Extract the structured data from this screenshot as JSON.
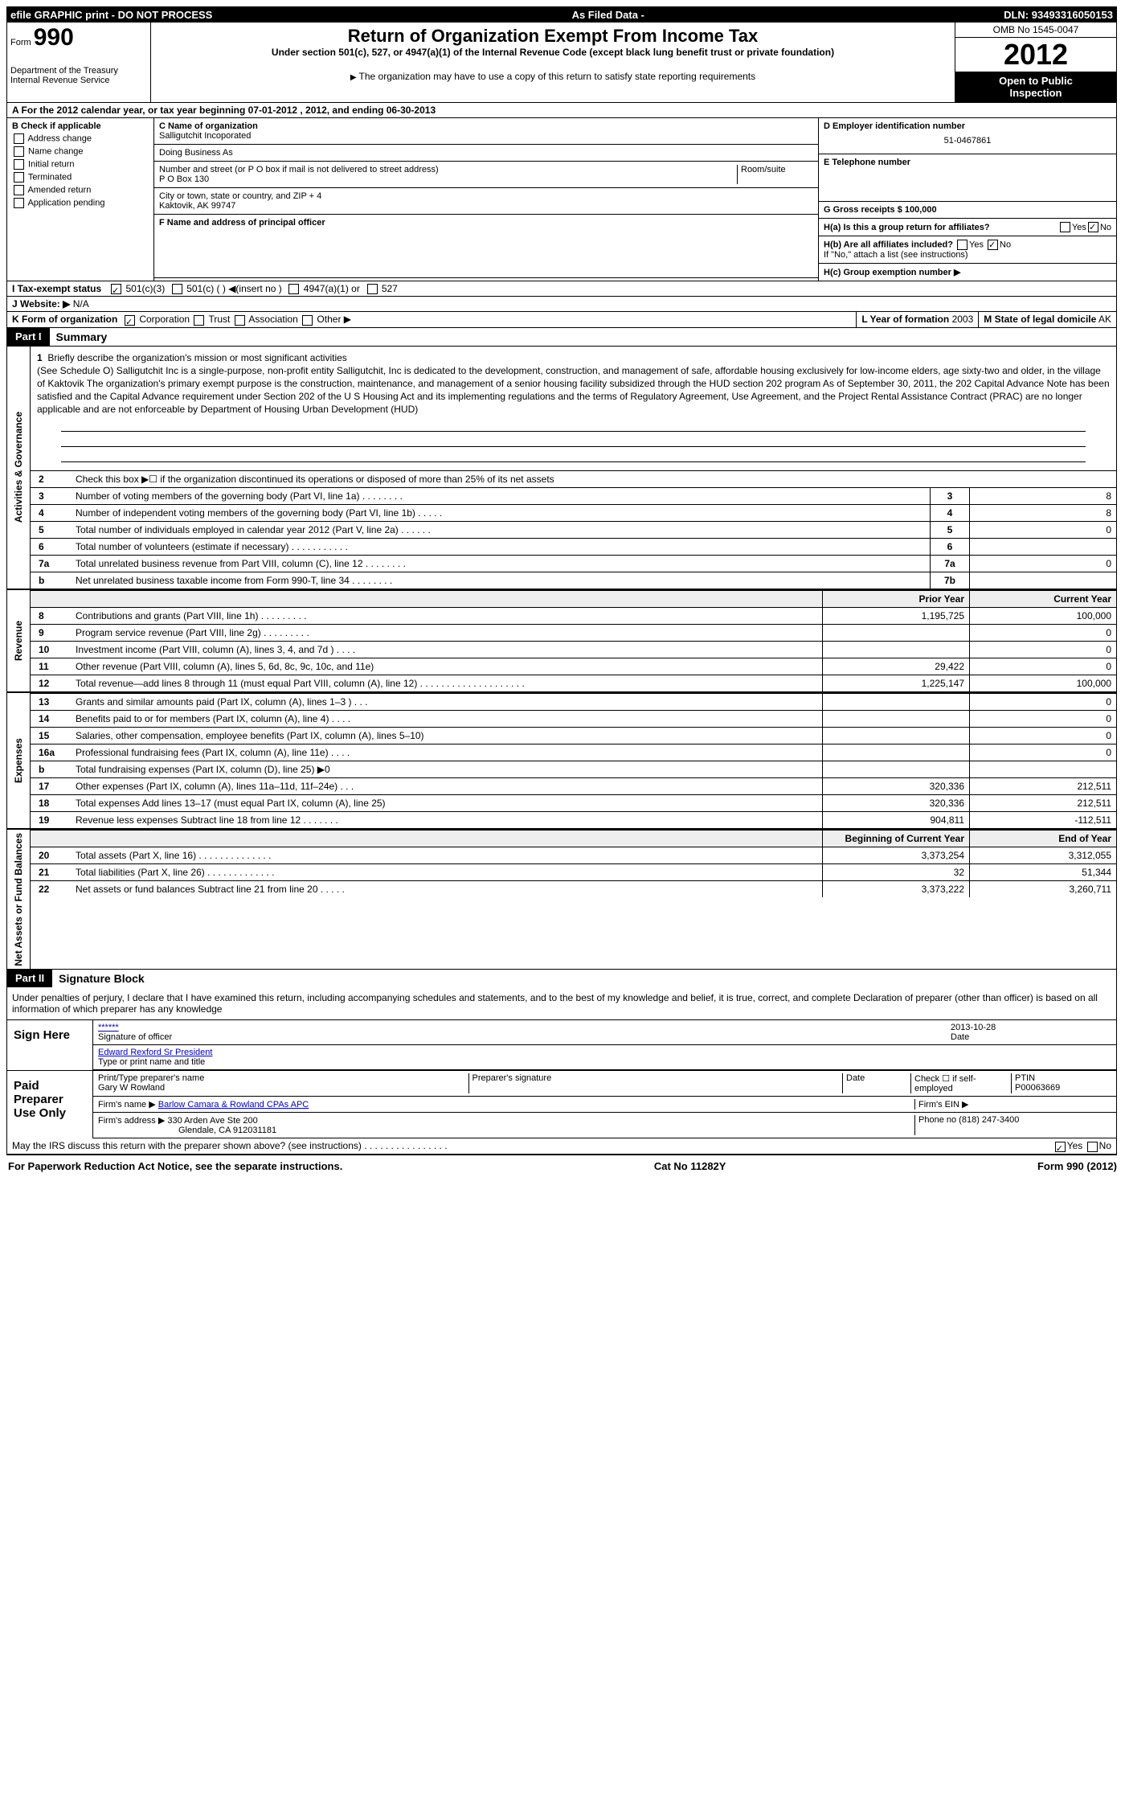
{
  "top_bar": {
    "left": "efile GRAPHIC print - DO NOT PROCESS",
    "center": "As Filed Data -",
    "right": "DLN: 93493316050153"
  },
  "header": {
    "form_label": "Form",
    "form_number": "990",
    "dept1": "Department of the Treasury",
    "dept2": "Internal Revenue Service",
    "title": "Return of Organization Exempt From Income Tax",
    "subtitle": "Under section 501(c), 527, or 4947(a)(1) of the Internal Revenue Code (except black lung benefit trust or private foundation)",
    "note": "The organization may have to use a copy of this return to satisfy state reporting requirements",
    "omb": "OMB No 1545-0047",
    "year": "2012",
    "open1": "Open to Public",
    "open2": "Inspection"
  },
  "period": "A For the 2012 calendar year, or tax year beginning 07-01-2012    , 2012, and ending 06-30-2013",
  "section_b": {
    "title": "B Check if applicable",
    "items": [
      "Address change",
      "Name change",
      "Initial return",
      "Terminated",
      "Amended return",
      "Application pending"
    ]
  },
  "section_c": {
    "name_lbl": "C Name of organization",
    "name": "Salligutchit Incoporated",
    "dba_lbl": "Doing Business As",
    "dba": "",
    "street_lbl": "Number and street (or P O  box if mail is not delivered to street address)",
    "room_lbl": "Room/suite",
    "street": "P O Box 130",
    "city_lbl": "City or town, state or country, and ZIP + 4",
    "city": "Kaktovik, AK  99747",
    "officer_lbl": "F   Name and address of principal officer"
  },
  "section_d": {
    "ein_lbl": "D Employer identification number",
    "ein": "51-0467861",
    "tel_lbl": "E Telephone number",
    "gross_lbl": "G Gross receipts $ 100,000"
  },
  "section_h": {
    "ha": "H(a)  Is this a group return for affiliates?",
    "hb": "H(b)  Are all affiliates included?",
    "hb_note": "If \"No,\" attach a list  (see instructions)",
    "hc": "H(c)   Group exemption number ▶"
  },
  "tax_status": "I   Tax-exempt status",
  "website_lbl": "J  Website: ▶",
  "website": "N/A",
  "k_form": "K Form of organization",
  "k_opts": [
    "Corporation",
    "Trust",
    "Association",
    "Other ▶"
  ],
  "l_year_lbl": "L Year of formation",
  "l_year": "2003",
  "m_state_lbl": "M State of legal domicile",
  "m_state": "AK",
  "part1": {
    "tab": "Part I",
    "title": "Summary"
  },
  "mission": {
    "num": "1",
    "label": "Briefly describe the organization's mission or most significant activities",
    "text": "(See Schedule O) Salligutchit Inc  is a single-purpose, non-profit entity  Salligutchit, Inc  is dedicated to the development, construction, and management of safe, affordable housing exclusively for low-income elders, age sixty-two and older, in the village of Kaktovik The organization's primary exempt purpose is the construction, maintenance, and management of a senior housing facility subsidized through the HUD section 202 program As of September 30, 2011, the 202 Capital Advance Note has been satisfied and the Capital Advance requirement under Section 202 of the U S Housing Act and its implementing regulations and the terms of Regulatory Agreement, Use Agreement, and the Project Rental Assistance Contract (PRAC) are no longer applicable and are not enforceable by Department of Housing Urban Development (HUD)"
  },
  "ag_rows": [
    {
      "n": "2",
      "t": "Check this box ▶☐ if the organization discontinued its operations or disposed of more than 25% of its net assets",
      "id": "",
      "v": ""
    },
    {
      "n": "3",
      "t": "Number of voting members of the governing body (Part VI, line 1a)  .  .  .  .  .  .  .  .",
      "id": "3",
      "v": "8"
    },
    {
      "n": "4",
      "t": "Number of independent voting members of the governing body (Part VI, line 1b)  .  .  .  .  .",
      "id": "4",
      "v": "8"
    },
    {
      "n": "5",
      "t": "Total number of individuals employed in calendar year 2012 (Part V, line 2a)  .  .  .  .  .  .",
      "id": "5",
      "v": "0"
    },
    {
      "n": "6",
      "t": "Total number of volunteers (estimate if necessary)  .  .  .  .  .  .  .  .  .  .  .",
      "id": "6",
      "v": ""
    },
    {
      "n": "7a",
      "t": "Total unrelated business revenue from Part VIII, column (C), line 12  .  .  .  .  .  .  .  .",
      "id": "7a",
      "v": "0"
    },
    {
      "n": "b",
      "t": "Net unrelated business taxable income from Form 990-T, line 34  .  .  .  .  .  .  .  .",
      "id": "7b",
      "v": ""
    }
  ],
  "rev_hdr": {
    "py": "Prior Year",
    "cy": "Current Year"
  },
  "revenue_rows": [
    {
      "n": "8",
      "t": "Contributions and grants (Part VIII, line 1h)  .  .  .  .  .  .  .  .  .",
      "py": "1,195,725",
      "cy": "100,000"
    },
    {
      "n": "9",
      "t": "Program service revenue (Part VIII, line 2g)  .  .  .  .  .  .  .  .  .",
      "py": "",
      "cy": "0"
    },
    {
      "n": "10",
      "t": "Investment income (Part VIII, column (A), lines 3, 4, and 7d )  .  .  .  .",
      "py": "",
      "cy": "0"
    },
    {
      "n": "11",
      "t": "Other revenue (Part VIII, column (A), lines 5, 6d, 8c, 9c, 10c, and 11e)",
      "py": "29,422",
      "cy": "0"
    },
    {
      "n": "12",
      "t": "Total revenue—add lines 8 through 11 (must equal Part VIII, column (A), line 12)  .  .  .  .  .  .  .  .  .  .  .  .  .  .  .  .  .  .  .  .",
      "py": "1,225,147",
      "cy": "100,000"
    }
  ],
  "expense_rows": [
    {
      "n": "13",
      "t": "Grants and similar amounts paid (Part IX, column (A), lines 1–3 )  .  .  .",
      "py": "",
      "cy": "0"
    },
    {
      "n": "14",
      "t": "Benefits paid to or for members (Part IX, column (A), line 4)  .  .  .  .",
      "py": "",
      "cy": "0"
    },
    {
      "n": "15",
      "t": "Salaries, other compensation, employee benefits (Part IX, column (A), lines 5–10)",
      "py": "",
      "cy": "0"
    },
    {
      "n": "16a",
      "t": "Professional fundraising fees (Part IX, column (A), line 11e)  .  .  .  .",
      "py": "",
      "cy": "0"
    },
    {
      "n": "b",
      "t": "Total fundraising expenses (Part IX, column (D), line 25) ▶0",
      "py": "",
      "cy": ""
    },
    {
      "n": "17",
      "t": "Other expenses (Part IX, column (A), lines 11a–11d, 11f–24e)  .  .  .",
      "py": "320,336",
      "cy": "212,511"
    },
    {
      "n": "18",
      "t": "Total expenses Add lines 13–17 (must equal Part IX, column (A), line 25)",
      "py": "320,336",
      "cy": "212,511"
    },
    {
      "n": "19",
      "t": "Revenue less expenses Subtract line 18 from line 12  .  .  .  .  .  .  .",
      "py": "904,811",
      "cy": "-112,511"
    }
  ],
  "na_hdr": {
    "py": "Beginning of Current Year",
    "cy": "End of Year"
  },
  "na_rows": [
    {
      "n": "20",
      "t": "Total assets (Part X, line 16)  .  .  .  .  .  .  .  .  .  .  .  .  .  .",
      "py": "3,373,254",
      "cy": "3,312,055"
    },
    {
      "n": "21",
      "t": "Total liabilities (Part X, line 26)  .  .  .  .  .  .  .  .  .  .  .  .  .",
      "py": "32",
      "cy": "51,344"
    },
    {
      "n": "22",
      "t": "Net assets or fund balances Subtract line 21 from line 20  .  .  .  .  .",
      "py": "3,373,222",
      "cy": "3,260,711"
    }
  ],
  "part2": {
    "tab": "Part II",
    "title": "Signature Block"
  },
  "perjury": "Under penalties of perjury, I declare that I have examined this return, including accompanying schedules and statements, and to the best of my knowledge and belief, it is true, correct, and complete  Declaration of preparer (other than officer) is based on all information of which preparer has any knowledge",
  "sign": {
    "left": "Sign Here",
    "sig": "******",
    "sig_lbl": "Signature of officer",
    "date": "2013-10-28",
    "date_lbl": "Date",
    "name": "Edward Rexford Sr President",
    "name_lbl": "Type or print name and title"
  },
  "paid": {
    "left": "Paid Preparer Use Only",
    "prep_name_lbl": "Print/Type preparer's name",
    "prep_name": "Gary W Rowland",
    "prep_sig_lbl": "Preparer's signature",
    "date_lbl": "Date",
    "check_lbl": "Check ☐ if self-employed",
    "ptin_lbl": "PTIN",
    "ptin": "P00063669",
    "firm_name_lbl": "Firm's name   ▶",
    "firm_name": "Barlow Camara & Rowland CPAs APC",
    "firm_ein_lbl": "Firm's EIN ▶",
    "firm_addr_lbl": "Firm's address ▶",
    "firm_addr1": "330 Arden Ave Ste 200",
    "firm_addr2": "Glendale, CA  912031181",
    "phone_lbl": "Phone no",
    "phone": "(818) 247-3400"
  },
  "irs_discuss": "May the IRS discuss this return with the preparer shown above? (see instructions)  .  .  .  .  .  .  .  .  .  .  .  .  .  .  .  .",
  "footer": {
    "left": "For Paperwork Reduction Act Notice, see the separate instructions.",
    "center": "Cat No 11282Y",
    "right": "Form 990 (2012)"
  },
  "sidebars": {
    "ag": "Activities & Governance",
    "rev": "Revenue",
    "exp": "Expenses",
    "na": "Net Assets or Fund Balances"
  }
}
